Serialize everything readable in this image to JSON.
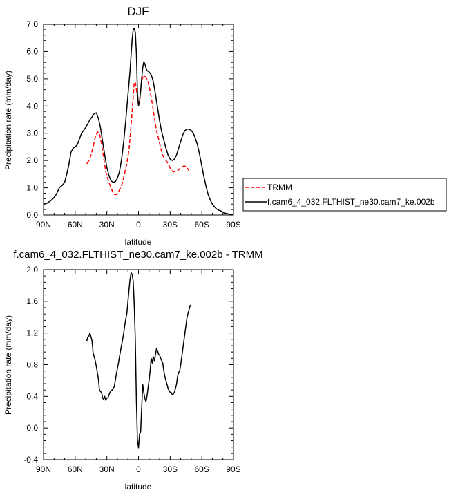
{
  "chart_data": [
    {
      "type": "line",
      "title": "DJF",
      "xlabel": "latitude",
      "ylabel": "Precipitation rate (mm/day)",
      "xlim": [
        -90,
        90
      ],
      "ylim": [
        0,
        7
      ],
      "x_ticks": [
        -90,
        -60,
        -30,
        0,
        30,
        60,
        90
      ],
      "x_tick_labels": [
        "90N",
        "60N",
        "30N",
        "0",
        "30S",
        "60S",
        "90S"
      ],
      "y_ticks": [
        0,
        1,
        2,
        3,
        4,
        5,
        6,
        7
      ],
      "y_tick_labels": [
        "0.0",
        "1.0",
        "2.0",
        "3.0",
        "4.0",
        "5.0",
        "6.0",
        "7.0"
      ],
      "legend_position": "right",
      "series": [
        {
          "name": "TRMM",
          "color": "#ff0000",
          "style": "dashed",
          "x": [
            -49,
            -47,
            -45,
            -43,
            -41,
            -39,
            -37,
            -35,
            -33,
            -31,
            -29,
            -27,
            -25,
            -23,
            -21,
            -19,
            -17,
            -15,
            -13,
            -11,
            -9,
            -7,
            -5,
            -4,
            -3,
            -2,
            -1,
            0,
            1,
            2,
            3,
            5,
            7,
            9,
            11,
            13,
            15,
            17,
            19,
            21,
            23,
            25,
            27,
            29,
            31,
            33,
            35,
            37,
            39,
            41,
            43,
            45,
            47,
            49
          ],
          "y": [
            1.88,
            2.0,
            2.2,
            2.5,
            2.85,
            3.05,
            3.0,
            2.6,
            2.1,
            1.6,
            1.3,
            1.1,
            0.9,
            0.75,
            0.75,
            0.85,
            1.0,
            1.2,
            1.55,
            1.9,
            2.4,
            3.3,
            4.35,
            4.88,
            4.85,
            4.6,
            4.3,
            4.0,
            4.2,
            4.55,
            4.95,
            5.12,
            5.05,
            4.9,
            4.55,
            4.1,
            3.6,
            3.1,
            2.8,
            2.45,
            2.2,
            2.05,
            1.95,
            1.8,
            1.65,
            1.58,
            1.6,
            1.62,
            1.7,
            1.75,
            1.8,
            1.78,
            1.68,
            1.55
          ]
        },
        {
          "name": "f.cam6_4_032.FLTHIST_ne30.cam7_ke.002b",
          "color": "#000000",
          "style": "solid",
          "x": [
            -90,
            -87,
            -84,
            -81,
            -78,
            -75,
            -72,
            -70,
            -68,
            -66,
            -64,
            -62,
            -60,
            -58,
            -56,
            -54,
            -52,
            -50,
            -48,
            -46,
            -44,
            -42,
            -40,
            -38,
            -36,
            -34,
            -32,
            -30,
            -28,
            -26,
            -24,
            -22,
            -20,
            -18,
            -16,
            -14,
            -12,
            -10,
            -8,
            -7,
            -6,
            -5,
            -4,
            -3,
            -2,
            -1,
            0,
            1,
            2,
            3,
            4,
            5,
            6,
            7,
            8,
            10,
            12,
            14,
            16,
            18,
            20,
            22,
            24,
            26,
            28,
            30,
            32,
            34,
            36,
            38,
            40,
            42,
            44,
            46,
            48,
            50,
            52,
            54,
            56,
            58,
            60,
            62,
            64,
            66,
            68,
            70,
            72,
            74,
            76,
            78,
            80,
            82,
            84,
            86,
            88,
            90
          ],
          "y": [
            0.4,
            0.43,
            0.5,
            0.6,
            0.75,
            1.0,
            1.1,
            1.2,
            1.5,
            1.85,
            2.3,
            2.45,
            2.5,
            2.58,
            2.78,
            3.0,
            3.1,
            3.22,
            3.35,
            3.5,
            3.6,
            3.72,
            3.75,
            3.55,
            3.2,
            2.7,
            2.2,
            1.75,
            1.45,
            1.25,
            1.2,
            1.22,
            1.35,
            1.6,
            2.05,
            2.7,
            3.5,
            4.4,
            5.3,
            5.9,
            6.45,
            6.8,
            6.85,
            6.7,
            5.95,
            4.5,
            4.0,
            4.15,
            4.55,
            5.0,
            5.4,
            5.62,
            5.55,
            5.4,
            5.3,
            5.25,
            5.15,
            4.9,
            4.45,
            3.95,
            3.45,
            3.05,
            2.75,
            2.45,
            2.2,
            2.05,
            2.0,
            2.05,
            2.2,
            2.45,
            2.7,
            2.95,
            3.1,
            3.15,
            3.15,
            3.1,
            3.0,
            2.8,
            2.55,
            2.2,
            1.8,
            1.4,
            1.05,
            0.75,
            0.55,
            0.4,
            0.3,
            0.22,
            0.18,
            0.15,
            0.1,
            0.07,
            0.05,
            0.03,
            0.02,
            0.0
          ]
        }
      ]
    },
    {
      "type": "line",
      "title": "f.cam6_4_032.FLTHIST_ne30.cam7_ke.002b - TRMM",
      "xlabel": "latitude",
      "ylabel": "Precipitation rate (mm/day)",
      "xlim": [
        -90,
        90
      ],
      "ylim": [
        -0.4,
        2.0
      ],
      "x_ticks": [
        -90,
        -60,
        -30,
        0,
        30,
        60,
        90
      ],
      "x_tick_labels": [
        "90N",
        "60N",
        "30N",
        "0",
        "30S",
        "60S",
        "90S"
      ],
      "y_ticks": [
        -0.4,
        0.0,
        0.4,
        0.8,
        1.2,
        1.6,
        2.0
      ],
      "y_tick_labels": [
        "-0.4",
        "0.0",
        "0.4",
        "0.8",
        "1.2",
        "1.6",
        "2.0"
      ],
      "series": [
        {
          "color": "#000000",
          "style": "solid",
          "x": [
            -49,
            -48,
            -47,
            -46,
            -45,
            -44,
            -43,
            -42,
            -41,
            -40,
            -39,
            -38,
            -37,
            -36,
            -35,
            -34,
            -33,
            -32,
            -31,
            -30,
            -29,
            -28,
            -27,
            -26,
            -25,
            -24,
            -23,
            -22,
            -21,
            -20,
            -19,
            -18,
            -17,
            -16,
            -15,
            -14,
            -13,
            -12,
            -11,
            -10,
            -9,
            -8,
            -7,
            -6,
            -5,
            -4,
            -3,
            -2,
            -1,
            0,
            1,
            2,
            3,
            4,
            5,
            6,
            7,
            8,
            9,
            10,
            11,
            12,
            13,
            14,
            15,
            16,
            17,
            18,
            19,
            20,
            21,
            22,
            23,
            24,
            25,
            26,
            27,
            28,
            29,
            30,
            31,
            32,
            33,
            34,
            35,
            36,
            37,
            38,
            39,
            40,
            41,
            42,
            43,
            44,
            45,
            46,
            47,
            48,
            49,
            50
          ],
          "y": [
            1.1,
            1.15,
            1.16,
            1.2,
            1.15,
            1.1,
            0.95,
            0.9,
            0.85,
            0.78,
            0.7,
            0.62,
            0.48,
            0.46,
            0.45,
            0.38,
            0.36,
            0.4,
            0.35,
            0.38,
            0.38,
            0.42,
            0.45,
            0.47,
            0.48,
            0.5,
            0.52,
            0.6,
            0.68,
            0.75,
            0.82,
            0.9,
            0.98,
            1.05,
            1.12,
            1.2,
            1.3,
            1.38,
            1.45,
            1.6,
            1.75,
            1.88,
            1.96,
            1.94,
            1.85,
            1.55,
            1.1,
            0.35,
            -0.15,
            -0.25,
            -0.08,
            -0.05,
            0.25,
            0.55,
            0.45,
            0.38,
            0.33,
            0.4,
            0.5,
            0.6,
            0.72,
            0.88,
            0.82,
            0.9,
            0.85,
            0.92,
            1.0,
            0.98,
            0.93,
            0.92,
            0.88,
            0.85,
            0.82,
            0.72,
            0.65,
            0.6,
            0.55,
            0.5,
            0.47,
            0.45,
            0.45,
            0.42,
            0.43,
            0.45,
            0.5,
            0.55,
            0.65,
            0.7,
            0.72,
            0.8,
            0.9,
            1.0,
            1.1,
            1.2,
            1.3,
            1.4,
            1.45,
            1.5,
            1.55,
            1.55
          ]
        }
      ]
    }
  ]
}
